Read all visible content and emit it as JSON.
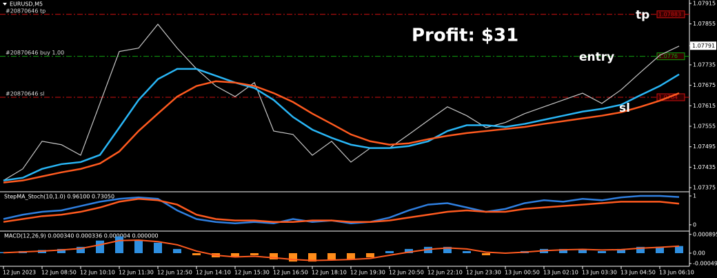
{
  "symbol": "EURUSD,M5",
  "annotation": "Profit: $31",
  "chart_data": [
    {
      "type": "line",
      "categories": [
        "12 Jun 2023",
        null,
        "12 Jun 08:50",
        null,
        "12 Jun 10:10",
        null,
        "12 Jun 11:30",
        null,
        "12 Jun 12:50",
        null,
        "12 Jun 14:10",
        null,
        "12 Jun 15:30",
        null,
        "12 Jun 16:50",
        null,
        "12 Jun 18:10",
        null,
        "12 Jun 19:30",
        null,
        "12 Jun 20:50",
        null,
        "12 Jun 22:10",
        null,
        "12 Jun 23:30",
        null,
        "13 Jun 00:50",
        null,
        "13 Jun 02:10",
        null,
        "13 Jun 03:30",
        null,
        "13 Jun 04:50",
        null,
        "13 Jun 06:10",
        null
      ],
      "series": [
        {
          "color": "#c8c8c8",
          "values": [
            1.07396,
            1.0743,
            1.07511,
            1.07501,
            1.0747,
            1.07622,
            1.07774,
            1.07784,
            1.07854,
            1.07784,
            1.07723,
            1.07673,
            1.07642,
            1.07683,
            1.07541,
            1.07531,
            1.0747,
            1.07511,
            1.0745,
            1.07491,
            1.07491,
            1.07531,
            1.07572,
            1.07612,
            1.07586,
            1.07551,
            1.07566,
            1.07592,
            1.07612,
            1.07632,
            1.07652,
            1.07622,
            1.07662,
            1.07713,
            1.07763,
            1.0779
          ]
        },
        {
          "color": "#29b6f6",
          "values": [
            1.07396,
            1.07404,
            1.0743,
            1.07444,
            1.0745,
            1.07471,
            1.07551,
            1.07632,
            1.07693,
            1.07723,
            1.07723,
            1.07703,
            1.07683,
            1.07667,
            1.07632,
            1.07582,
            1.07545,
            1.07521,
            1.07501,
            1.07491,
            1.07491,
            1.07497,
            1.07511,
            1.07541,
            1.07558,
            1.07558,
            1.07553,
            1.07562,
            1.07574,
            1.07586,
            1.07598,
            1.07606,
            1.07618,
            1.07646,
            1.07673,
            1.07707
          ]
        },
        {
          "color": "#ff5a1f",
          "values": [
            1.0739,
            1.07396,
            1.07408,
            1.0742,
            1.0743,
            1.07446,
            1.07481,
            1.07541,
            1.07592,
            1.07642,
            1.07673,
            1.07687,
            1.07683,
            1.07673,
            1.07652,
            1.07626,
            1.07592,
            1.07562,
            1.07531,
            1.07511,
            1.07501,
            1.07505,
            1.07517,
            1.07527,
            1.07535,
            1.07541,
            1.07547,
            1.07553,
            1.07562,
            1.0757,
            1.07578,
            1.07586,
            1.07596,
            1.07612,
            1.0763,
            1.07652
          ]
        }
      ],
      "ylim": [
        1.07365,
        1.07925
      ],
      "yticks": [
        1.07915,
        1.07855,
        1.07791,
        1.07735,
        1.07675,
        1.07615,
        1.07555,
        1.07495,
        1.07435,
        1.07375
      ],
      "last_price": 1.07791,
      "grid": false,
      "levels": [
        {
          "label": "#20870646 tp",
          "value": 1.07883,
          "color": "#d01010",
          "tag": "tp"
        },
        {
          "label": "#20870646 buy 1.00",
          "value": 1.0776,
          "color": "#10a010",
          "tag": "entry"
        },
        {
          "label": "#20870646 sl",
          "value": 1.0764,
          "color": "#d01010",
          "tag": "sl"
        }
      ]
    },
    {
      "type": "line",
      "title": "StepMA_Stoch(10,1.0) 0.96100 0.73050",
      "series": [
        {
          "color": "#2f7fe0",
          "values": [
            0.2,
            0.35,
            0.45,
            0.5,
            0.65,
            0.8,
            0.9,
            0.95,
            0.9,
            0.5,
            0.2,
            0.1,
            0.05,
            0.1,
            0.05,
            0.2,
            0.1,
            0.15,
            0.05,
            0.1,
            0.25,
            0.5,
            0.7,
            0.75,
            0.6,
            0.45,
            0.55,
            0.75,
            0.85,
            0.8,
            0.9,
            0.85,
            0.95,
            1,
            1,
            0.961
          ]
        },
        {
          "color": "#ff5a1f",
          "values": [
            0.1,
            0.2,
            0.3,
            0.35,
            0.45,
            0.6,
            0.8,
            0.9,
            0.85,
            0.7,
            0.35,
            0.2,
            0.15,
            0.15,
            0.1,
            0.1,
            0.15,
            0.15,
            0.1,
            0.1,
            0.15,
            0.25,
            0.35,
            0.45,
            0.5,
            0.45,
            0.45,
            0.55,
            0.6,
            0.65,
            0.7,
            0.75,
            0.8,
            0.8,
            0.8,
            0.7305
          ]
        }
      ],
      "ylim": [
        -0.17,
        1.12
      ],
      "yticks": [
        1,
        0
      ]
    },
    {
      "type": "macd",
      "title": "MACD(12,26,9) 0.000340 0.000336 0.000004 0.000000",
      "values": [
        5e-05,
        0.0001,
        0.00015,
        0.0002,
        0.0003,
        0.0006,
        0.0008,
        0.0006,
        0.0005,
        0.0002,
        -0.0001,
        -0.0002,
        -0.0002,
        -0.0001,
        -0.0003,
        -0.0004,
        -0.0004,
        -0.0003,
        -0.0003,
        -0.0002,
        0.0001,
        0.0002,
        0.0003,
        0.0003,
        0.0001,
        -0.0001,
        0,
        0.0001,
        0.0002,
        0.0002,
        0.0002,
        0.0001,
        0.0002,
        0.0003,
        0.0003,
        0.00034
      ],
      "color_up": "#2f8fe0",
      "color_down": "#ff8c1a",
      "signal": {
        "color": "#ff5a1f",
        "values": [
          2e-05,
          6e-05,
          0.0001,
          0.00015,
          0.00022,
          0.0004,
          0.0006,
          0.00062,
          0.00055,
          0.0004,
          0.0001,
          -0.0001,
          -0.00018,
          -0.00015,
          -0.00022,
          -0.0003,
          -0.00035,
          -0.00033,
          -0.0003,
          -0.00025,
          -0.0001,
          5e-05,
          0.00018,
          0.00025,
          0.0002,
          5e-05,
          0,
          5e-05,
          0.00012,
          0.00016,
          0.00018,
          0.00015,
          0.00017,
          0.00024,
          0.00028,
          0.000336
        ]
      },
      "ylim": [
        -0.00056,
        0.00102
      ],
      "yticks": [
        {
          "value": 0.000895,
          "label": "0.000895"
        },
        {
          "value": 0,
          "label": "0.00"
        },
        {
          "value": -0.000495,
          "label": "-0.000495"
        }
      ]
    }
  ]
}
